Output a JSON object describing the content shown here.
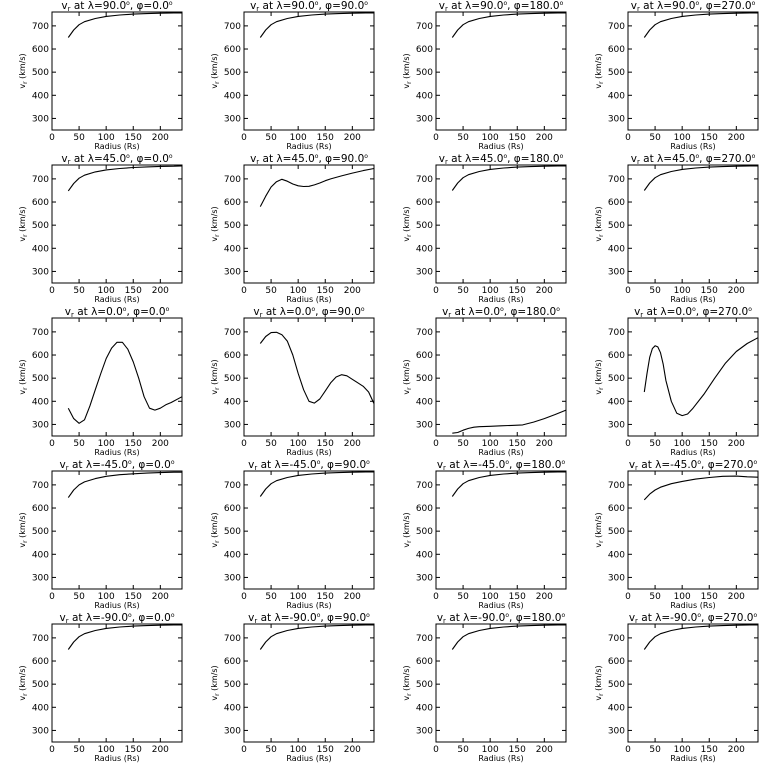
{
  "panels_xlabel": "Radius (Rs)",
  "panels_ylabel": "v",
  "panels_ylabel_sub": "r",
  "panels_ylabel_units": "(km/s)",
  "chart_data": [
    {
      "type": "line",
      "title": "v_r at λ=90.0°, φ=0.0°",
      "title_parts": {
        "lambda": "90.0",
        "phi": "0.0"
      },
      "xlim": [
        0,
        240
      ],
      "ylim": [
        250,
        760
      ],
      "xticks": [
        0,
        50,
        100,
        150,
        200
      ],
      "yticks": [
        300,
        400,
        500,
        600,
        700
      ],
      "xlabel": "Radius (Rs)",
      "ylabel": "v_r (km/s)",
      "x": [
        30,
        40,
        50,
        60,
        80,
        100,
        125,
        150,
        175,
        200,
        225,
        240
      ],
      "y": [
        650,
        682,
        705,
        718,
        732,
        741,
        747,
        751,
        753,
        755,
        756,
        756
      ]
    },
    {
      "type": "line",
      "title": "v_r at λ=90.0°, φ=90.0°",
      "title_parts": {
        "lambda": "90.0",
        "phi": "90.0"
      },
      "xlim": [
        0,
        240
      ],
      "ylim": [
        250,
        760
      ],
      "xticks": [
        0,
        50,
        100,
        150,
        200
      ],
      "yticks": [
        300,
        400,
        500,
        600,
        700
      ],
      "xlabel": "Radius (Rs)",
      "ylabel": "v_r (km/s)",
      "x": [
        30,
        40,
        50,
        60,
        80,
        100,
        125,
        150,
        175,
        200,
        225,
        240
      ],
      "y": [
        650,
        682,
        705,
        718,
        732,
        741,
        747,
        751,
        753,
        755,
        756,
        756
      ]
    },
    {
      "type": "line",
      "title": "v_r at λ=90.0°, φ=180.0°",
      "title_parts": {
        "lambda": "90.0",
        "phi": "180.0"
      },
      "xlim": [
        0,
        240
      ],
      "ylim": [
        250,
        760
      ],
      "xticks": [
        0,
        50,
        100,
        150,
        200
      ],
      "yticks": [
        300,
        400,
        500,
        600,
        700
      ],
      "xlabel": "Radius (Rs)",
      "ylabel": "v_r (km/s)",
      "x": [
        30,
        40,
        50,
        60,
        80,
        100,
        125,
        150,
        175,
        200,
        225,
        240
      ],
      "y": [
        650,
        682,
        705,
        718,
        732,
        741,
        747,
        751,
        753,
        755,
        756,
        756
      ]
    },
    {
      "type": "line",
      "title": "v_r at λ=90.0°, φ=270.0°",
      "title_parts": {
        "lambda": "90.0",
        "phi": "270.0"
      },
      "xlim": [
        0,
        240
      ],
      "ylim": [
        250,
        760
      ],
      "xticks": [
        0,
        50,
        100,
        150,
        200
      ],
      "yticks": [
        300,
        400,
        500,
        600,
        700
      ],
      "xlabel": "Radius (Rs)",
      "ylabel": "v_r (km/s)",
      "x": [
        30,
        40,
        50,
        60,
        80,
        100,
        125,
        150,
        175,
        200,
        225,
        240
      ],
      "y": [
        650,
        682,
        705,
        718,
        732,
        741,
        747,
        751,
        753,
        755,
        756,
        756
      ]
    },
    {
      "type": "line",
      "title": "v_r at λ=45.0°, φ=0.0°",
      "title_parts": {
        "lambda": "45.0",
        "phi": "0.0"
      },
      "xlim": [
        0,
        240
      ],
      "ylim": [
        250,
        760
      ],
      "xticks": [
        0,
        50,
        100,
        150,
        200
      ],
      "yticks": [
        300,
        400,
        500,
        600,
        700
      ],
      "xlabel": "Radius (Rs)",
      "ylabel": "v_r (km/s)",
      "x": [
        30,
        40,
        50,
        60,
        80,
        100,
        125,
        150,
        175,
        200,
        225,
        240
      ],
      "y": [
        648,
        680,
        703,
        716,
        730,
        739,
        745,
        749,
        752,
        754,
        755,
        756
      ]
    },
    {
      "type": "line",
      "title": "v_r at λ=45.0°, φ=90.0°",
      "title_parts": {
        "lambda": "45.0",
        "phi": "90.0"
      },
      "xlim": [
        0,
        240
      ],
      "ylim": [
        250,
        760
      ],
      "xticks": [
        0,
        50,
        100,
        150,
        200
      ],
      "yticks": [
        300,
        400,
        500,
        600,
        700
      ],
      "xlabel": "Radius (Rs)",
      "ylabel": "v_r (km/s)",
      "x": [
        30,
        40,
        50,
        60,
        70,
        80,
        90,
        100,
        110,
        120,
        130,
        140,
        150,
        160,
        180,
        200,
        220,
        240
      ],
      "y": [
        580,
        625,
        665,
        688,
        698,
        690,
        678,
        670,
        667,
        668,
        674,
        682,
        692,
        700,
        713,
        725,
        736,
        745
      ]
    },
    {
      "type": "line",
      "title": "v_r at λ=45.0°, φ=180.0°",
      "title_parts": {
        "lambda": "45.0",
        "phi": "180.0"
      },
      "xlim": [
        0,
        240
      ],
      "ylim": [
        250,
        760
      ],
      "xticks": [
        0,
        50,
        100,
        150,
        200
      ],
      "yticks": [
        300,
        400,
        500,
        600,
        700
      ],
      "xlabel": "Radius (Rs)",
      "ylabel": "v_r (km/s)",
      "x": [
        30,
        40,
        50,
        60,
        80,
        100,
        125,
        150,
        175,
        200,
        225,
        240
      ],
      "y": [
        650,
        682,
        705,
        718,
        732,
        741,
        747,
        751,
        753,
        755,
        756,
        756
      ]
    },
    {
      "type": "line",
      "title": "v_r at λ=45.0°, φ=270.0°",
      "title_parts": {
        "lambda": "45.0",
        "phi": "270.0"
      },
      "xlim": [
        0,
        240
      ],
      "ylim": [
        250,
        760
      ],
      "xticks": [
        0,
        50,
        100,
        150,
        200
      ],
      "yticks": [
        300,
        400,
        500,
        600,
        700
      ],
      "xlabel": "Radius (Rs)",
      "ylabel": "v_r (km/s)",
      "x": [
        30,
        40,
        50,
        60,
        80,
        100,
        125,
        150,
        175,
        200,
        225,
        240
      ],
      "y": [
        650,
        682,
        705,
        718,
        732,
        741,
        747,
        751,
        753,
        755,
        756,
        756
      ]
    },
    {
      "type": "line",
      "title": "v_r at λ=0.0°, φ=0.0°",
      "title_parts": {
        "lambda": "0.0",
        "phi": "0.0"
      },
      "xlim": [
        0,
        240
      ],
      "ylim": [
        250,
        760
      ],
      "xticks": [
        0,
        50,
        100,
        150,
        200
      ],
      "yticks": [
        300,
        400,
        500,
        600,
        700
      ],
      "xlabel": "Radius (Rs)",
      "ylabel": "v_r (km/s)",
      "x": [
        30,
        40,
        50,
        60,
        70,
        80,
        90,
        100,
        110,
        120,
        130,
        140,
        150,
        160,
        170,
        180,
        190,
        200,
        210,
        220,
        240
      ],
      "y": [
        370,
        325,
        305,
        320,
        380,
        450,
        520,
        585,
        630,
        655,
        655,
        625,
        570,
        500,
        420,
        370,
        362,
        370,
        385,
        395,
        420
      ]
    },
    {
      "type": "line",
      "title": "v_r at λ=0.0°, φ=90.0°",
      "title_parts": {
        "lambda": "0.0",
        "phi": "90.0"
      },
      "xlim": [
        0,
        240
      ],
      "ylim": [
        250,
        760
      ],
      "xticks": [
        0,
        50,
        100,
        150,
        200
      ],
      "yticks": [
        300,
        400,
        500,
        600,
        700
      ],
      "xlabel": "Radius (Rs)",
      "ylabel": "v_r (km/s)",
      "x": [
        30,
        40,
        50,
        60,
        70,
        80,
        90,
        100,
        110,
        120,
        130,
        140,
        150,
        160,
        170,
        180,
        190,
        200,
        210,
        220,
        230,
        240
      ],
      "y": [
        650,
        680,
        697,
        698,
        688,
        660,
        600,
        520,
        450,
        400,
        392,
        410,
        445,
        480,
        505,
        515,
        510,
        495,
        480,
        465,
        440,
        390
      ]
    },
    {
      "type": "line",
      "title": "v_r at λ=0.0°, φ=180.0°",
      "title_parts": {
        "lambda": "0.0",
        "phi": "180.0"
      },
      "xlim": [
        0,
        240
      ],
      "ylim": [
        250,
        760
      ],
      "xticks": [
        0,
        50,
        100,
        150,
        200
      ],
      "yticks": [
        300,
        400,
        500,
        600,
        700
      ],
      "xlabel": "Radius (Rs)",
      "ylabel": "v_r (km/s)",
      "x": [
        30,
        40,
        50,
        60,
        70,
        80,
        100,
        120,
        140,
        160,
        180,
        200,
        220,
        240
      ],
      "y": [
        262,
        265,
        275,
        283,
        288,
        290,
        292,
        294,
        296,
        298,
        310,
        325,
        343,
        362
      ]
    },
    {
      "type": "line",
      "title": "v_r at λ=0.0°, φ=270.0°",
      "title_parts": {
        "lambda": "0.0",
        "phi": "270.0"
      },
      "xlim": [
        0,
        240
      ],
      "ylim": [
        250,
        760
      ],
      "xticks": [
        0,
        50,
        100,
        150,
        200
      ],
      "yticks": [
        300,
        400,
        500,
        600,
        700
      ],
      "xlabel": "Radius (Rs)",
      "ylabel": "v_r (km/s)",
      "x": [
        30,
        35,
        40,
        45,
        50,
        55,
        60,
        65,
        70,
        80,
        90,
        100,
        110,
        120,
        140,
        160,
        180,
        200,
        220,
        240
      ],
      "y": [
        440,
        520,
        590,
        628,
        640,
        635,
        610,
        560,
        490,
        400,
        348,
        338,
        345,
        370,
        430,
        500,
        565,
        615,
        650,
        675
      ]
    },
    {
      "type": "line",
      "title": "v_r at λ=-45.0°, φ=0.0°",
      "title_parts": {
        "lambda": "-45.0",
        "phi": "0.0"
      },
      "xlim": [
        0,
        240
      ],
      "ylim": [
        250,
        760
      ],
      "xticks": [
        0,
        50,
        100,
        150,
        200
      ],
      "yticks": [
        300,
        400,
        500,
        600,
        700
      ],
      "xlabel": "Radius (Rs)",
      "ylabel": "v_r (km/s)",
      "x": [
        30,
        40,
        50,
        60,
        80,
        100,
        125,
        150,
        175,
        200,
        225,
        240
      ],
      "y": [
        645,
        678,
        700,
        713,
        727,
        737,
        744,
        748,
        751,
        753,
        755,
        755
      ]
    },
    {
      "type": "line",
      "title": "v_r at λ=-45.0°, φ=90.0°",
      "title_parts": {
        "lambda": "-45.0",
        "phi": "90.0"
      },
      "xlim": [
        0,
        240
      ],
      "ylim": [
        250,
        760
      ],
      "xticks": [
        0,
        50,
        100,
        150,
        200
      ],
      "yticks": [
        300,
        400,
        500,
        600,
        700
      ],
      "xlabel": "Radius (Rs)",
      "ylabel": "v_r (km/s)",
      "x": [
        30,
        40,
        50,
        60,
        80,
        100,
        125,
        150,
        175,
        200,
        225,
        240
      ],
      "y": [
        650,
        682,
        705,
        718,
        732,
        741,
        747,
        751,
        753,
        755,
        756,
        756
      ]
    },
    {
      "type": "line",
      "title": "v_r at λ=-45.0°, φ=180.0°",
      "title_parts": {
        "lambda": "-45.0",
        "phi": "180.0"
      },
      "xlim": [
        0,
        240
      ],
      "ylim": [
        250,
        760
      ],
      "xticks": [
        0,
        50,
        100,
        150,
        200
      ],
      "yticks": [
        300,
        400,
        500,
        600,
        700
      ],
      "xlabel": "Radius (Rs)",
      "ylabel": "v_r (km/s)",
      "x": [
        30,
        40,
        50,
        60,
        80,
        100,
        125,
        150,
        175,
        200,
        225,
        240
      ],
      "y": [
        650,
        682,
        705,
        718,
        732,
        741,
        747,
        751,
        753,
        755,
        756,
        756
      ]
    },
    {
      "type": "line",
      "title": "v_r at λ=-45.0°, φ=270.0°",
      "title_parts": {
        "lambda": "-45.0",
        "phi": "270.0"
      },
      "xlim": [
        0,
        240
      ],
      "ylim": [
        250,
        760
      ],
      "xticks": [
        0,
        50,
        100,
        150,
        200
      ],
      "yticks": [
        300,
        400,
        500,
        600,
        700
      ],
      "xlabel": "Radius (Rs)",
      "ylabel": "v_r (km/s)",
      "x": [
        30,
        40,
        50,
        60,
        80,
        100,
        125,
        150,
        175,
        200,
        220,
        240
      ],
      "y": [
        635,
        660,
        678,
        690,
        705,
        715,
        725,
        732,
        737,
        738,
        735,
        733
      ]
    },
    {
      "type": "line",
      "title": "v_r at λ=-90.0°, φ=0.0°",
      "title_parts": {
        "lambda": "-90.0",
        "phi": "0.0"
      },
      "xlim": [
        0,
        240
      ],
      "ylim": [
        250,
        760
      ],
      "xticks": [
        0,
        50,
        100,
        150,
        200
      ],
      "yticks": [
        300,
        400,
        500,
        600,
        700
      ],
      "xlabel": "Radius (Rs)",
      "ylabel": "v_r (km/s)",
      "x": [
        30,
        40,
        50,
        60,
        80,
        100,
        125,
        150,
        175,
        200,
        225,
        240
      ],
      "y": [
        650,
        682,
        705,
        718,
        732,
        741,
        747,
        751,
        753,
        755,
        756,
        756
      ]
    },
    {
      "type": "line",
      "title": "v_r at λ=-90.0°, φ=90.0°",
      "title_parts": {
        "lambda": "-90.0",
        "phi": "90.0"
      },
      "xlim": [
        0,
        240
      ],
      "ylim": [
        250,
        760
      ],
      "xticks": [
        0,
        50,
        100,
        150,
        200
      ],
      "yticks": [
        300,
        400,
        500,
        600,
        700
      ],
      "xlabel": "Radius (Rs)",
      "ylabel": "v_r (km/s)",
      "x": [
        30,
        40,
        50,
        60,
        80,
        100,
        125,
        150,
        175,
        200,
        225,
        240
      ],
      "y": [
        650,
        682,
        705,
        718,
        732,
        741,
        747,
        751,
        753,
        755,
        756,
        756
      ]
    },
    {
      "type": "line",
      "title": "v_r at λ=-90.0°, φ=180.0°",
      "title_parts": {
        "lambda": "-90.0",
        "phi": "180.0"
      },
      "xlim": [
        0,
        240
      ],
      "ylim": [
        250,
        760
      ],
      "xticks": [
        0,
        50,
        100,
        150,
        200
      ],
      "yticks": [
        300,
        400,
        500,
        600,
        700
      ],
      "xlabel": "Radius (Rs)",
      "ylabel": "v_r (km/s)",
      "x": [
        30,
        40,
        50,
        60,
        80,
        100,
        125,
        150,
        175,
        200,
        225,
        240
      ],
      "y": [
        650,
        682,
        705,
        718,
        732,
        741,
        747,
        751,
        753,
        755,
        756,
        756
      ]
    },
    {
      "type": "line",
      "title": "v_r at λ=-90.0°, φ=270.0°",
      "title_parts": {
        "lambda": "-90.0",
        "phi": "270.0"
      },
      "xlim": [
        0,
        240
      ],
      "ylim": [
        250,
        760
      ],
      "xticks": [
        0,
        50,
        100,
        150,
        200
      ],
      "yticks": [
        300,
        400,
        500,
        600,
        700
      ],
      "xlabel": "Radius (Rs)",
      "ylabel": "v_r (km/s)",
      "x": [
        30,
        40,
        50,
        60,
        80,
        100,
        125,
        150,
        175,
        200,
        225,
        240
      ],
      "y": [
        650,
        682,
        705,
        718,
        732,
        741,
        747,
        751,
        753,
        755,
        756,
        756
      ]
    }
  ]
}
